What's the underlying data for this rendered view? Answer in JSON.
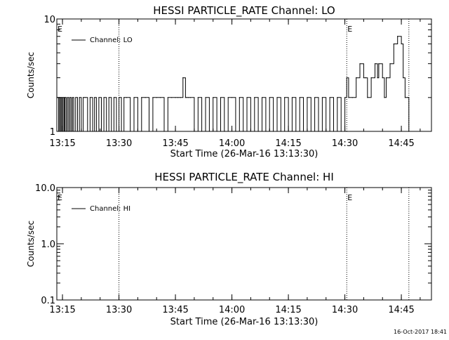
{
  "chart_data": [
    {
      "type": "line",
      "title": "HESSI PARTICLE_RATE Channel: LO",
      "xlabel": "Start Time (26-Mar-16 13:13:30)",
      "ylabel": "Counts/sec",
      "yscale": "log",
      "ylim": [
        1,
        10
      ],
      "xlim": [
        "13:13:30",
        "14:53:00"
      ],
      "xtick_labels": [
        "13:15",
        "13:30",
        "13:45",
        "14:00",
        "14:15",
        "14:30",
        "14:45"
      ],
      "ytick_labels": [
        "1",
        "10"
      ],
      "legend": {
        "position": "top-left",
        "entries": [
          "Channel: LO"
        ]
      },
      "event_markers": [
        {
          "time": "13:13:30",
          "label": "E"
        },
        {
          "time": "13:30:00",
          "label": ""
        },
        {
          "time": "14:30:30",
          "label": "E"
        },
        {
          "time": "14:47:00",
          "label": ""
        }
      ],
      "series": [
        {
          "name": "Channel: LO",
          "x": [
            "13:13:40",
            "13:14:00",
            "13:14:10",
            "13:14:30",
            "13:14:40",
            "13:15:00",
            "13:15:10",
            "13:15:30",
            "13:15:40",
            "13:16:00",
            "13:16:20",
            "13:16:40",
            "13:17:00",
            "13:17:20",
            "13:17:40",
            "13:18:00",
            "13:18:30",
            "13:19:00",
            "13:19:30",
            "13:20:00",
            "13:20:30",
            "13:21:00",
            "13:21:40",
            "13:22:20",
            "13:23:00",
            "13:23:30",
            "13:24:00",
            "13:24:40",
            "13:25:20",
            "13:26:00",
            "13:26:40",
            "13:27:20",
            "13:28:00",
            "13:28:40",
            "13:29:20",
            "13:30:00",
            "13:30:40",
            "13:31:20",
            "13:32:00",
            "13:33:00",
            "13:34:00",
            "13:35:00",
            "13:36:00",
            "13:37:00",
            "13:38:00",
            "13:39:00",
            "13:40:00",
            "13:41:00",
            "13:42:00",
            "13:43:00",
            "13:44:00",
            "13:45:00",
            "13:45:40",
            "13:46:20",
            "13:47:00",
            "13:47:40",
            "13:48:00",
            "13:48:30",
            "13:49:00",
            "13:50:00",
            "13:51:00",
            "13:52:00",
            "13:53:00",
            "13:54:00",
            "13:55:00",
            "13:56:00",
            "13:57:00",
            "13:58:00",
            "13:59:00",
            "14:00:00",
            "14:01:00",
            "14:02:00",
            "14:03:00",
            "14:04:00",
            "14:05:00",
            "14:06:00",
            "14:07:00",
            "14:08:00",
            "14:09:00",
            "14:10:00",
            "14:11:00",
            "14:12:00",
            "14:13:00",
            "14:14:00",
            "14:15:00",
            "14:16:00",
            "14:17:00",
            "14:18:00",
            "14:19:00",
            "14:20:00",
            "14:21:00",
            "14:22:00",
            "14:23:00",
            "14:24:00",
            "14:25:00",
            "14:26:00",
            "14:27:00",
            "14:28:00",
            "14:29:00",
            "14:30:00",
            "14:30:30",
            "14:31:00",
            "14:32:00",
            "14:33:00",
            "14:34:00",
            "14:35:00",
            "14:35:30",
            "14:36:00",
            "14:37:00",
            "14:38:00",
            "14:38:40",
            "14:39:00",
            "14:40:00",
            "14:40:30",
            "14:41:00",
            "14:42:00",
            "14:43:00",
            "14:44:00",
            "14:45:00",
            "14:45:30",
            "14:46:00",
            "14:46:40",
            "14:47:00"
          ],
          "y": [
            2,
            1,
            2,
            1,
            2,
            1,
            2,
            1,
            2,
            1,
            2,
            1,
            2,
            1,
            2,
            1,
            2,
            1,
            2,
            1,
            2,
            2,
            1,
            2,
            1,
            2,
            1,
            2,
            1,
            2,
            1,
            2,
            1,
            2,
            1,
            2,
            1,
            2,
            2,
            1,
            2,
            1,
            2,
            2,
            1,
            2,
            2,
            2,
            1,
            2,
            2,
            2,
            2,
            2,
            3,
            2,
            2,
            2,
            2,
            1,
            2,
            1,
            2,
            1,
            2,
            1,
            2,
            1,
            2,
            2,
            1,
            2,
            1,
            2,
            1,
            2,
            1,
            2,
            1,
            2,
            1,
            2,
            1,
            2,
            1,
            2,
            1,
            2,
            1,
            2,
            1,
            2,
            1,
            2,
            1,
            2,
            1,
            2,
            1,
            2,
            3,
            2,
            2,
            3,
            4,
            3,
            3,
            2,
            3,
            4,
            3,
            4,
            3,
            2,
            3,
            4,
            6,
            7,
            6,
            3,
            2,
            2,
            1
          ]
        }
      ]
    },
    {
      "type": "line",
      "title": "HESSI PARTICLE_RATE Channel: HI",
      "xlabel": "Start Time (26-Mar-16 13:13:30)",
      "ylabel": "Counts/sec",
      "yscale": "log",
      "ylim": [
        0.1,
        10
      ],
      "xlim": [
        "13:13:30",
        "14:53:00"
      ],
      "xtick_labels": [
        "13:15",
        "13:30",
        "13:45",
        "14:00",
        "14:15",
        "14:30",
        "14:45"
      ],
      "ytick_labels": [
        "0.1",
        "1.0",
        "10.0"
      ],
      "legend": {
        "position": "top-left",
        "entries": [
          "Channel: HI"
        ]
      },
      "event_markers": [
        {
          "time": "13:13:30",
          "label": "E"
        },
        {
          "time": "13:30:00",
          "label": ""
        },
        {
          "time": "14:30:30",
          "label": "E"
        },
        {
          "time": "14:47:00",
          "label": ""
        }
      ],
      "series": [
        {
          "name": "Channel: HI",
          "x": [],
          "y": []
        }
      ]
    }
  ],
  "footer": {
    "timestamp": "16-Oct-2017 18:41"
  }
}
